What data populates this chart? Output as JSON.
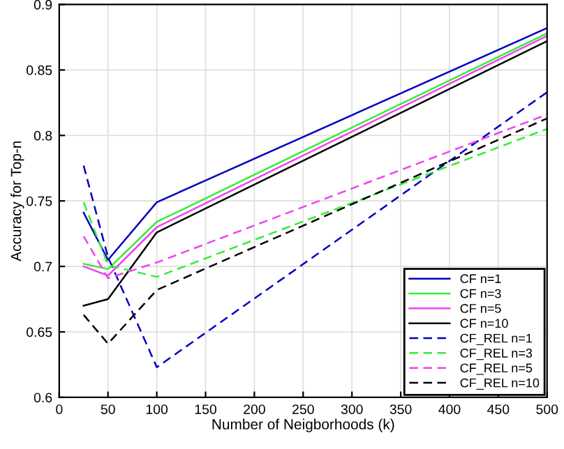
{
  "chart_data": {
    "type": "line",
    "xlabel": "Number of Neigborhoods (k)",
    "ylabel": "Accuracy for Top-n",
    "x": [
      25,
      50,
      100,
      500
    ],
    "series": [
      {
        "name": "CF n=1",
        "color": "#0000c0",
        "line_style": "solid",
        "values": [
          0.741,
          0.705,
          0.749,
          0.882
        ]
      },
      {
        "name": "CF n=3",
        "color": "#33ee33",
        "line_style": "solid",
        "values": [
          0.702,
          0.698,
          0.734,
          0.878
        ]
      },
      {
        "name": "CF n=5",
        "color": "#ee44ee",
        "line_style": "solid",
        "values": [
          0.7,
          0.693,
          0.73,
          0.876
        ]
      },
      {
        "name": "CF n=10",
        "color": "#000000",
        "line_style": "solid",
        "values": [
          0.67,
          0.675,
          0.726,
          0.872
        ]
      },
      {
        "name": "CF_REL n=1",
        "color": "#0000c0",
        "line_style": "dashed",
        "values": [
          0.777,
          0.707,
          0.623,
          0.833
        ]
      },
      {
        "name": "CF_REL n=3",
        "color": "#33ee33",
        "line_style": "dashed",
        "values": [
          0.749,
          0.701,
          0.692,
          0.805
        ]
      },
      {
        "name": "CF_REL n=5",
        "color": "#ee44ee",
        "line_style": "dashed",
        "values": [
          0.723,
          0.691,
          0.703,
          0.816
        ]
      },
      {
        "name": "CF_REL n=10",
        "color": "#000000",
        "line_style": "dashed",
        "values": [
          0.663,
          0.641,
          0.682,
          0.813
        ]
      }
    ],
    "xlim": [
      0,
      500
    ],
    "ylim": [
      0.6,
      0.9
    ],
    "xticks": [
      0,
      50,
      100,
      150,
      200,
      250,
      300,
      350,
      400,
      450,
      500
    ],
    "yticks": [
      0.6,
      0.65,
      0.7,
      0.75,
      0.8,
      0.85,
      0.9
    ],
    "grid": true,
    "legend": "bottom right",
    "marker": "none"
  }
}
